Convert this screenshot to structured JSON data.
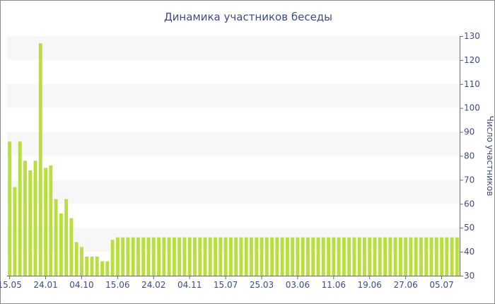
{
  "chart_data": {
    "type": "bar",
    "title": "Динамика участников беседы",
    "ylabel": "Число участников",
    "xlabel": "",
    "ylim": [
      30,
      130
    ],
    "y_ticks": [
      30,
      40,
      50,
      60,
      70,
      80,
      90,
      100,
      110,
      120,
      130
    ],
    "y_axis_side": "right",
    "grid": "alternating horizontal bands",
    "legend": "none",
    "bar_color": "#b8e03a",
    "band_color": "#f7f7f7",
    "text_color": "#3d4b8c",
    "x_tick_labels": [
      {
        "index": 0,
        "label": "15.05"
      },
      {
        "index": 7,
        "label": "24.01"
      },
      {
        "index": 14,
        "label": "04.10"
      },
      {
        "index": 21,
        "label": "15.06"
      },
      {
        "index": 28,
        "label": "24.02"
      },
      {
        "index": 35,
        "label": "04.11"
      },
      {
        "index": 42,
        "label": "15.07"
      },
      {
        "index": 49,
        "label": "25.03"
      },
      {
        "index": 56,
        "label": "03.06"
      },
      {
        "index": 63,
        "label": "11.06"
      },
      {
        "index": 70,
        "label": "19.06"
      },
      {
        "index": 77,
        "label": "27.06"
      },
      {
        "index": 84,
        "label": "05.07"
      }
    ],
    "values": [
      86,
      67,
      86,
      78,
      74,
      78,
      127,
      75,
      76,
      62,
      56,
      62,
      54,
      44,
      42,
      38,
      38,
      38,
      36,
      36,
      45,
      46,
      46,
      46,
      46,
      46,
      46,
      46,
      46,
      46,
      46,
      46,
      46,
      46,
      46,
      46,
      46,
      46,
      46,
      46,
      46,
      46,
      46,
      46,
      46,
      46,
      46,
      46,
      46,
      46,
      46,
      46,
      46,
      46,
      46,
      46,
      46,
      46,
      46,
      46,
      46,
      46,
      46,
      46,
      46,
      46,
      46,
      46,
      46,
      46,
      46,
      46,
      46,
      46,
      46,
      46,
      46,
      46,
      46,
      46,
      46,
      46,
      46,
      46,
      46,
      46,
      46,
      46
    ]
  }
}
